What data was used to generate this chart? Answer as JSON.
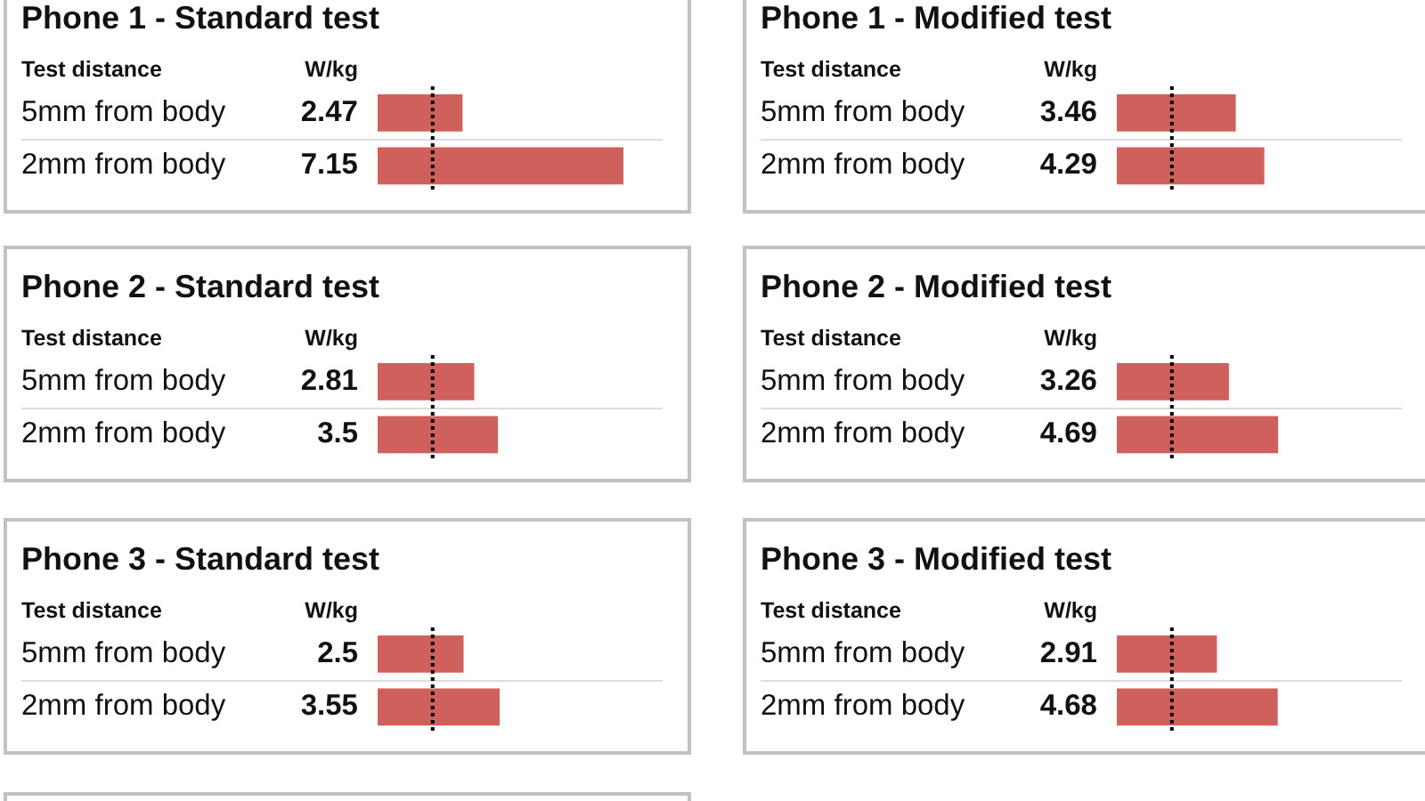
{
  "chart_data": [
    {
      "type": "bar",
      "orientation": "horizontal",
      "title": "Phone 1 - Standard test",
      "ylabel": "Test distance",
      "xlabel": "W/kg",
      "categories": [
        "5mm from body",
        "2mm from body"
      ],
      "values": [
        2.47,
        7.15
      ],
      "color": "#d0605b",
      "data_labels": true,
      "ref_lines": [
        {
          "axis": "x",
          "value": 1.6,
          "color": "#000000",
          "line_style": "dotted"
        }
      ],
      "grid": "y",
      "tick_labels": "y"
    },
    {
      "type": "bar",
      "orientation": "horizontal",
      "title": "Phone 1 - Modified test",
      "ylabel": "Test distance",
      "xlabel": "W/kg",
      "categories": [
        "5mm from body",
        "2mm from body"
      ],
      "values": [
        3.46,
        4.29
      ],
      "color": "#d0605b",
      "data_labels": true,
      "ref_lines": [
        {
          "axis": "x",
          "value": 1.6,
          "color": "#000000",
          "line_style": "dotted"
        }
      ],
      "grid": "y",
      "tick_labels": "y"
    },
    {
      "type": "bar",
      "orientation": "horizontal",
      "title": "Phone 2 - Standard test",
      "ylabel": "Test distance",
      "xlabel": "W/kg",
      "categories": [
        "5mm from body",
        "2mm from body"
      ],
      "values": [
        2.81,
        3.5
      ],
      "color": "#d0605b",
      "data_labels": true,
      "ref_lines": [
        {
          "axis": "x",
          "value": 1.6,
          "color": "#000000",
          "line_style": "dotted"
        }
      ],
      "grid": "y",
      "tick_labels": "y"
    },
    {
      "type": "bar",
      "orientation": "horizontal",
      "title": "Phone 2 - Modified test",
      "ylabel": "Test distance",
      "xlabel": "W/kg",
      "categories": [
        "5mm from body",
        "2mm from body"
      ],
      "values": [
        3.26,
        4.69
      ],
      "color": "#d0605b",
      "data_labels": true,
      "ref_lines": [
        {
          "axis": "x",
          "value": 1.6,
          "color": "#000000",
          "line_style": "dotted"
        }
      ],
      "grid": "y",
      "tick_labels": "y"
    },
    {
      "type": "bar",
      "orientation": "horizontal",
      "title": "Phone 3 - Standard test",
      "ylabel": "Test distance",
      "xlabel": "W/kg",
      "categories": [
        "5mm from body",
        "2mm from body"
      ],
      "values": [
        2.5,
        3.55
      ],
      "color": "#d0605b",
      "data_labels": true,
      "ref_lines": [
        {
          "axis": "x",
          "value": 1.6,
          "color": "#000000",
          "line_style": "dotted"
        }
      ],
      "grid": "y",
      "tick_labels": "y"
    },
    {
      "type": "bar",
      "orientation": "horizontal",
      "title": "Phone 3 - Modified test",
      "ylabel": "Test distance",
      "xlabel": "W/kg",
      "categories": [
        "5mm from body",
        "2mm from body"
      ],
      "values": [
        2.91,
        4.68
      ],
      "color": "#d0605b",
      "data_labels": true,
      "ref_lines": [
        {
          "axis": "x",
          "value": 1.6,
          "color": "#000000",
          "line_style": "dotted"
        }
      ],
      "grid": "y",
      "tick_labels": "y"
    }
  ]
}
